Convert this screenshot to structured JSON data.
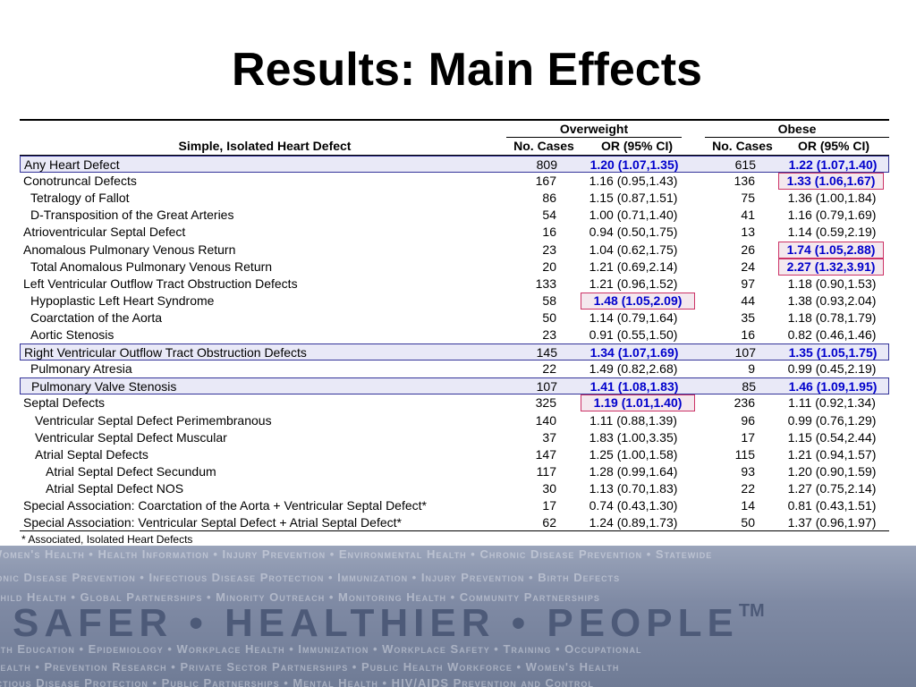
{
  "title": "Results:  Main Effects",
  "headers": {
    "group1": "Overweight",
    "group2": "Obese",
    "defect": "Simple, Isolated Heart Defect",
    "cases1": "No. Cases",
    "or1": "OR (95% CI)",
    "cases2": "No. Cases",
    "or2": "OR (95% CI)"
  },
  "rows": [
    {
      "name": "Any Heart Defect",
      "indent": 0,
      "n1": "809",
      "or1": "1.20 (1.07,1.35)",
      "n2": "615",
      "or2": "1.22 (1.07,1.40)",
      "highlight": true,
      "sig1": true,
      "sig2": true,
      "box1": false,
      "box2": false
    },
    {
      "name": "Conotruncal Defects",
      "indent": 0,
      "n1": "167",
      "or1": "1.16 (0.95,1.43)",
      "n2": "136",
      "or2": "1.33 (1.06,1.67)",
      "highlight": false,
      "sig1": false,
      "sig2": true,
      "box1": false,
      "box2": true
    },
    {
      "name": "Tetralogy of Fallot",
      "indent": 1,
      "n1": "86",
      "or1": "1.15 (0.87,1.51)",
      "n2": "75",
      "or2": "1.36 (1.00,1.84)",
      "highlight": false,
      "sig1": false,
      "sig2": false,
      "box1": false,
      "box2": false
    },
    {
      "name": "D-Transposition of the Great Arteries",
      "indent": 1,
      "n1": "54",
      "or1": "1.00 (0.71,1.40)",
      "n2": "41",
      "or2": "1.16 (0.79,1.69)",
      "highlight": false,
      "sig1": false,
      "sig2": false,
      "box1": false,
      "box2": false
    },
    {
      "name": "Atrioventricular Septal Defect",
      "indent": 0,
      "n1": "16",
      "or1": "0.94 (0.50,1.75)",
      "n2": "13",
      "or2": "1.14 (0.59,2.19)",
      "highlight": false,
      "sig1": false,
      "sig2": false,
      "box1": false,
      "box2": false
    },
    {
      "name": "Anomalous Pulmonary Venous Return",
      "indent": 0,
      "n1": "23",
      "or1": "1.04 (0.62,1.75)",
      "n2": "26",
      "or2": "1.74 (1.05,2.88)",
      "highlight": false,
      "sig1": false,
      "sig2": true,
      "box1": false,
      "box2": true
    },
    {
      "name": "Total Anomalous Pulmonary Venous Return",
      "indent": 1,
      "n1": "20",
      "or1": "1.21 (0.69,2.14)",
      "n2": "24",
      "or2": "2.27 (1.32,3.91)",
      "highlight": false,
      "sig1": false,
      "sig2": true,
      "box1": false,
      "box2": true
    },
    {
      "name": "Left Ventricular Outflow Tract Obstruction Defects",
      "indent": 0,
      "n1": "133",
      "or1": "1.21 (0.96,1.52)",
      "n2": "97",
      "or2": "1.18 (0.90,1.53)",
      "highlight": false,
      "sig1": false,
      "sig2": false,
      "box1": false,
      "box2": false
    },
    {
      "name": "Hypoplastic Left Heart Syndrome",
      "indent": 1,
      "n1": "58",
      "or1": "1.48 (1.05,2.09)",
      "n2": "44",
      "or2": "1.38 (0.93,2.04)",
      "highlight": false,
      "sig1": true,
      "sig2": false,
      "box1": true,
      "box2": false
    },
    {
      "name": "Coarctation of the Aorta",
      "indent": 1,
      "n1": "50",
      "or1": "1.14 (0.79,1.64)",
      "n2": "35",
      "or2": "1.18 (0.78,1.79)",
      "highlight": false,
      "sig1": false,
      "sig2": false,
      "box1": false,
      "box2": false
    },
    {
      "name": "Aortic Stenosis",
      "indent": 1,
      "n1": "23",
      "or1": "0.91 (0.55,1.50)",
      "n2": "16",
      "or2": "0.82 (0.46,1.46)",
      "highlight": false,
      "sig1": false,
      "sig2": false,
      "box1": false,
      "box2": false
    },
    {
      "name": "Right Ventricular Outflow Tract Obstruction Defects",
      "indent": 0,
      "n1": "145",
      "or1": "1.34 (1.07,1.69)",
      "n2": "107",
      "or2": "1.35 (1.05,1.75)",
      "highlight": true,
      "sig1": true,
      "sig2": true,
      "box1": false,
      "box2": false
    },
    {
      "name": "Pulmonary Atresia",
      "indent": 1,
      "n1": "22",
      "or1": "1.49 (0.82,2.68)",
      "n2": "9",
      "or2": "0.99 (0.45,2.19)",
      "highlight": false,
      "sig1": false,
      "sig2": false,
      "box1": false,
      "box2": false
    },
    {
      "name": "Pulmonary Valve Stenosis",
      "indent": 1,
      "n1": "107",
      "or1": "1.41 (1.08,1.83)",
      "n2": "85",
      "or2": "1.46 (1.09,1.95)",
      "highlight": true,
      "sig1": true,
      "sig2": true,
      "box1": false,
      "box2": false
    },
    {
      "name": "Septal Defects",
      "indent": 0,
      "n1": "325",
      "or1": "1.19 (1.01,1.40)",
      "n2": "236",
      "or2": "1.11 (0.92,1.34)",
      "highlight": false,
      "sig1": true,
      "sig2": false,
      "box1": true,
      "box2": false
    },
    {
      "name": "Ventricular Septal Defect Perimembranous",
      "indent": 2,
      "n1": "140",
      "or1": "1.11 (0.88,1.39)",
      "n2": "96",
      "or2": "0.99 (0.76,1.29)",
      "highlight": false,
      "sig1": false,
      "sig2": false,
      "box1": false,
      "box2": false
    },
    {
      "name": "Ventricular Septal Defect Muscular",
      "indent": 2,
      "n1": "37",
      "or1": "1.83 (1.00,3.35)",
      "n2": "17",
      "or2": "1.15 (0.54,2.44)",
      "highlight": false,
      "sig1": false,
      "sig2": false,
      "box1": false,
      "box2": false
    },
    {
      "name": "Atrial Septal Defects",
      "indent": 2,
      "n1": "147",
      "or1": "1.25 (1.00,1.58)",
      "n2": "115",
      "or2": "1.21 (0.94,1.57)",
      "highlight": false,
      "sig1": false,
      "sig2": false,
      "box1": false,
      "box2": false
    },
    {
      "name": "Atrial Septal Defect Secundum",
      "indent": 3,
      "n1": "117",
      "or1": "1.28 (0.99,1.64)",
      "n2": "93",
      "or2": "1.20 (0.90,1.59)",
      "highlight": false,
      "sig1": false,
      "sig2": false,
      "box1": false,
      "box2": false
    },
    {
      "name": "Atrial Septal Defect NOS",
      "indent": 3,
      "n1": "30",
      "or1": "1.13 (0.70,1.83)",
      "n2": "22",
      "or2": "1.27 (0.75,2.14)",
      "highlight": false,
      "sig1": false,
      "sig2": false,
      "box1": false,
      "box2": false
    },
    {
      "name": "Special Association: Coarctation of the Aorta + Ventricular Septal Defect*",
      "indent": 0,
      "n1": "17",
      "or1": "0.74 (0.43,1.30)",
      "n2": "14",
      "or2": "0.81 (0.43,1.51)",
      "highlight": false,
      "sig1": false,
      "sig2": false,
      "box1": false,
      "box2": false
    },
    {
      "name": "Special Association: Ventricular Septal Defect + Atrial Septal Defect*",
      "indent": 0,
      "n1": "62",
      "or1": "1.24 (0.89,1.73)",
      "n2": "50",
      "or2": "1.37 (0.96,1.97)",
      "highlight": false,
      "sig1": false,
      "sig2": false,
      "box1": false,
      "box2": false
    }
  ],
  "footnote": "* Associated, Isolated Heart Defects",
  "banner": {
    "slogan": "SAFER • HEALTHIER • PEOPLE",
    "trademark": "TM",
    "lines": [
      "Women's Health • Health Information • Injury Prevention • Environmental Health • Chronic Disease Prevention • Statewide",
      "Chronic Disease Prevention • Infectious Disease Protection • Immunization • Injury Prevention • Birth Defects",
      "Child Health • Global Partnerships • Minority Outreach • Monitoring Health • Community Partnerships",
      "Health Education • Epidemiology • Workplace Health • Immunization • Workplace Safety • Training • Occupational",
      "Health • Prevention Research • Private Sector Partnerships • Public Health Workforce • Women's Health",
      "Infectious Disease Protection • Public Partnerships • Mental Health • HIV/AIDS Prevention and Control"
    ]
  },
  "colors": {
    "significant": "#0000cc",
    "highlight_fill": "#e9e9f7",
    "highlight_border": "#333399",
    "box_fill": "#f4e8ee",
    "box_border": "#cc3366",
    "banner": "#7f8aa4"
  }
}
